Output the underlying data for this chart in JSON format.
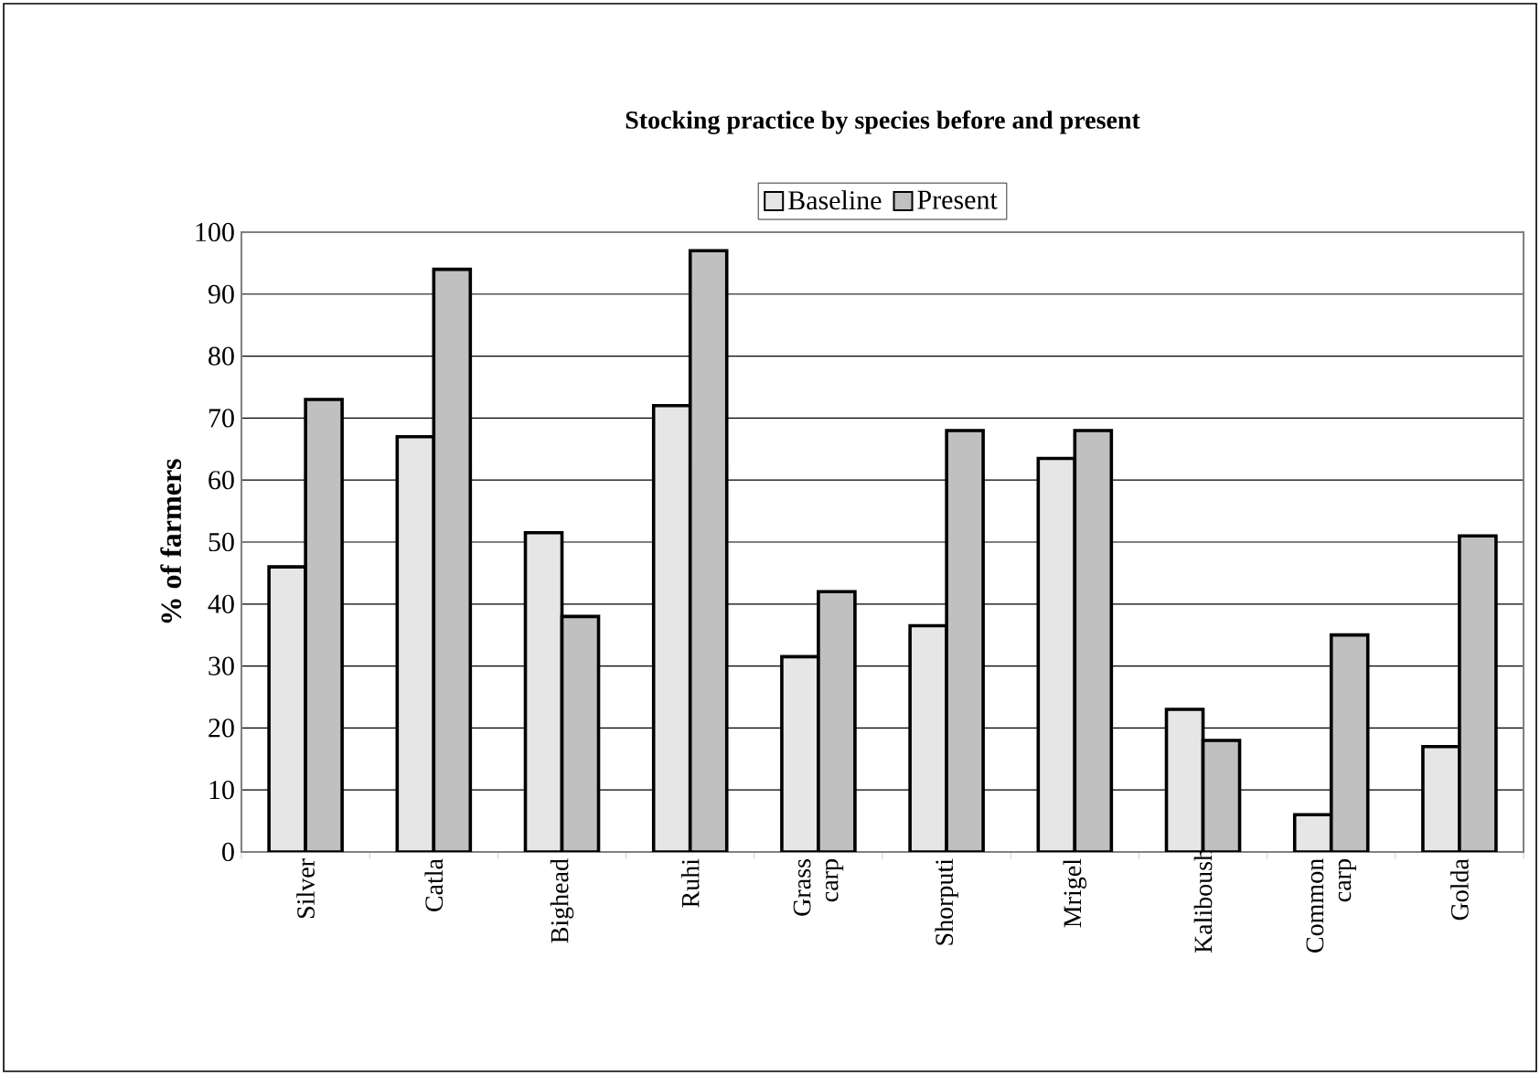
{
  "chart_data": {
    "type": "bar",
    "title": "Stocking practice by species before and present",
    "ylabel": "% of farmers",
    "categories": [
      "Silver",
      "Catla",
      "Bighead",
      "Ruhi",
      "Grass carp",
      "Shorputi",
      "Mrigel",
      "Kaliboush",
      "Common carp",
      "Golda"
    ],
    "series": [
      {
        "name": "Baseline",
        "color": "#e6e6e6",
        "values": [
          46,
          67,
          51.5,
          72,
          31.5,
          36.5,
          63.5,
          23,
          6,
          17
        ]
      },
      {
        "name": "Present",
        "color": "#c0c0c0",
        "values": [
          73,
          94,
          38,
          97,
          42,
          68,
          68,
          18,
          35,
          51
        ]
      }
    ],
    "ylim": [
      0,
      100
    ],
    "yticks": [
      0,
      10,
      20,
      30,
      40,
      50,
      60,
      70,
      80,
      90,
      100
    ],
    "grid": "y",
    "legend": "top"
  }
}
